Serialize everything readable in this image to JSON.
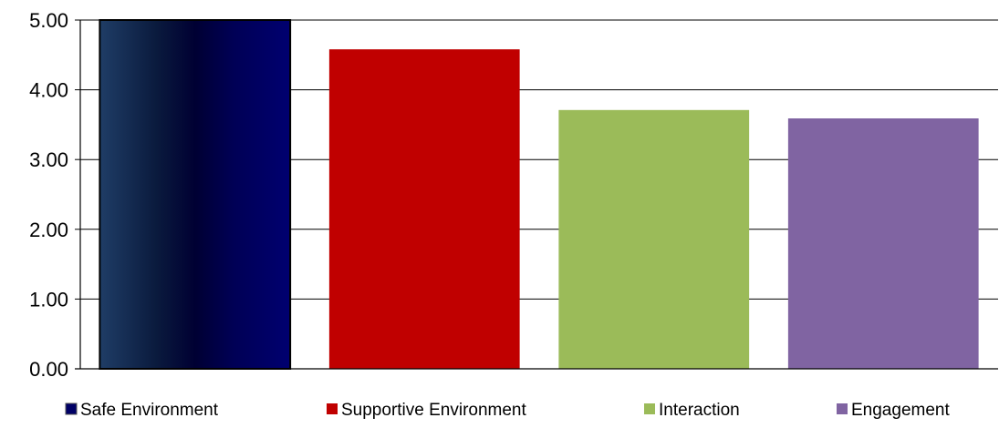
{
  "chart_data": {
    "type": "bar",
    "categories": [
      "Safe Environment",
      "Supportive Environment",
      "Interaction",
      "Engagement"
    ],
    "values": [
      5.0,
      4.58,
      3.71,
      3.59
    ],
    "colors": [
      "#000066",
      "#C00000",
      "#9BBB59",
      "#8064A2"
    ],
    "title": "",
    "xlabel": "",
    "ylabel": "",
    "ylim": [
      0,
      5
    ],
    "yticks": [
      "0.00",
      "1.00",
      "2.00",
      "3.00",
      "4.00",
      "5.00"
    ],
    "grid": true,
    "legend": {
      "position": "bottom",
      "entries": [
        "Safe Environment",
        "Supportive Environment",
        "Interaction",
        "Engagement"
      ]
    }
  }
}
